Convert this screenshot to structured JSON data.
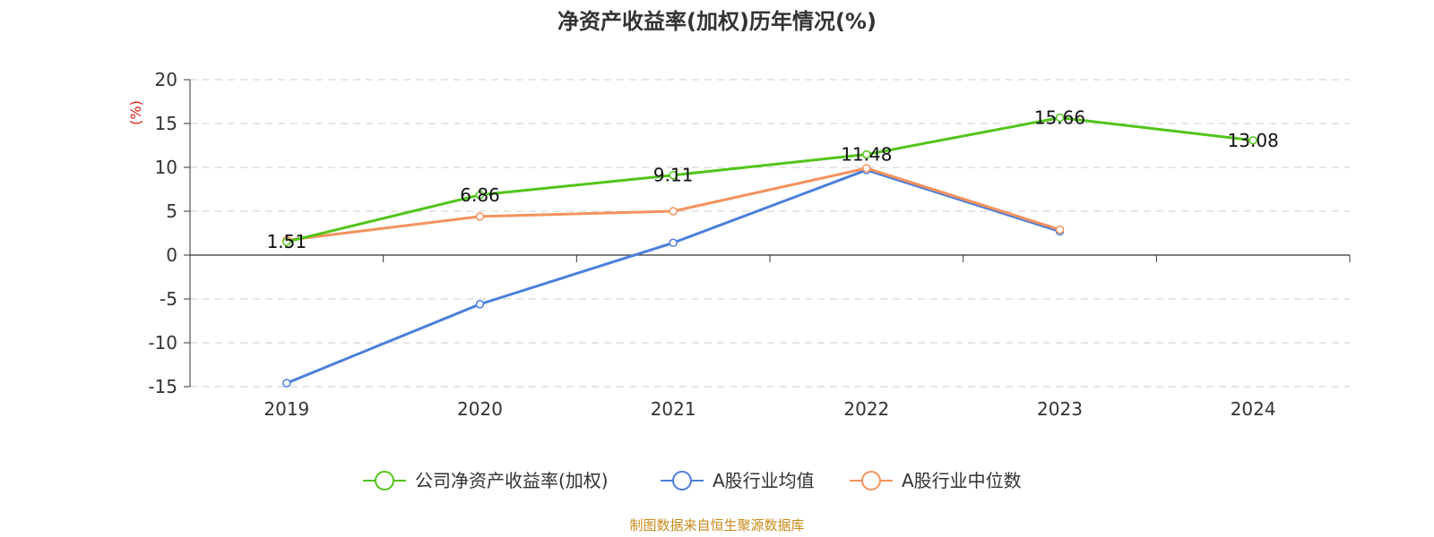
{
  "chart_data": {
    "type": "line",
    "title": "净资产收益率(加权)历年情况(%)",
    "ylabel": "(%)",
    "xlabel": "",
    "categories": [
      "2019",
      "2020",
      "2021",
      "2022",
      "2023",
      "2024"
    ],
    "ylim": [
      -15,
      20
    ],
    "yticks": [
      20,
      15,
      10,
      5,
      0,
      -5,
      -10,
      -15
    ],
    "grid": true,
    "legend_position": "bottom",
    "series": [
      {
        "name": "公司净资产收益率(加权)",
        "color": "#52c41a",
        "values": [
          1.51,
          6.86,
          9.11,
          11.48,
          15.66,
          13.08
        ],
        "labels": [
          "1.51",
          "6.86",
          "9.11",
          "11.48",
          "15.66",
          "13.08"
        ]
      },
      {
        "name": "A股行业均值",
        "color": "#4a7fdb",
        "values": [
          -14.6,
          -5.6,
          1.4,
          9.7,
          2.7,
          null
        ]
      },
      {
        "name": "A股行业中位数",
        "color": "#f5925e",
        "values": [
          1.7,
          4.4,
          5.0,
          9.9,
          2.9,
          null
        ]
      }
    ]
  },
  "source_text": "制图数据来自恒生聚源数据库"
}
